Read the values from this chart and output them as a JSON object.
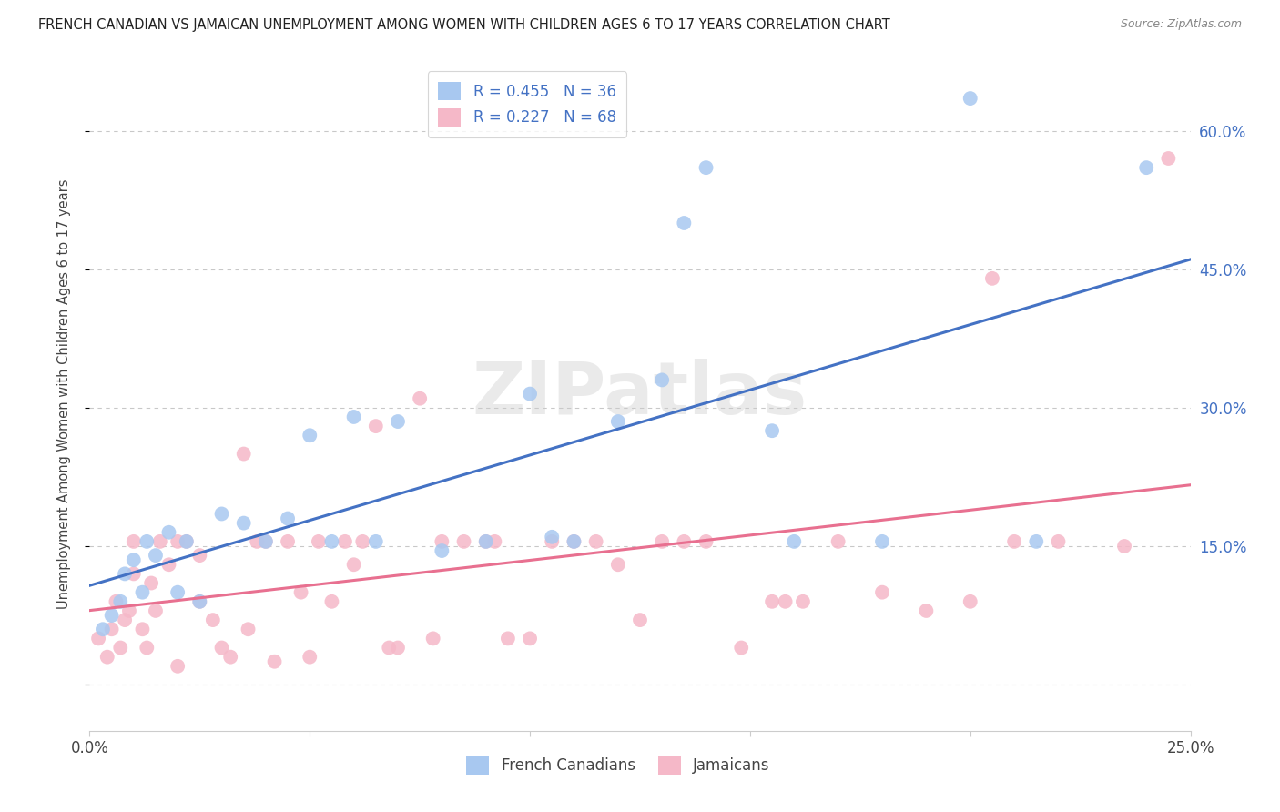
{
  "title": "FRENCH CANADIAN VS JAMAICAN UNEMPLOYMENT AMONG WOMEN WITH CHILDREN AGES 6 TO 17 YEARS CORRELATION CHART",
  "source": "Source: ZipAtlas.com",
  "ylabel": "Unemployment Among Women with Children Ages 6 to 17 years",
  "xlim": [
    0.0,
    0.25
  ],
  "ylim": [
    -0.05,
    0.68
  ],
  "xtick_positions": [
    0.0,
    0.05,
    0.1,
    0.15,
    0.2,
    0.25
  ],
  "xticklabels": [
    "0.0%",
    "",
    "",
    "",
    "",
    "25.0%"
  ],
  "ytick_positions": [
    0.0,
    0.15,
    0.3,
    0.45,
    0.6
  ],
  "yticklabels_right": [
    "",
    "15.0%",
    "30.0%",
    "45.0%",
    "60.0%"
  ],
  "blue_scatter_color": "#A8C8F0",
  "pink_scatter_color": "#F5B8C8",
  "blue_line_color": "#4472C4",
  "pink_line_color": "#E87090",
  "tick_label_color": "#4472C4",
  "watermark": "ZIPatlas",
  "R_blue": 0.455,
  "N_blue": 36,
  "R_pink": 0.227,
  "N_pink": 68,
  "blue_scatter_x": [
    0.003,
    0.005,
    0.007,
    0.008,
    0.01,
    0.012,
    0.013,
    0.015,
    0.018,
    0.02,
    0.022,
    0.025,
    0.03,
    0.035,
    0.04,
    0.045,
    0.05,
    0.055,
    0.06,
    0.065,
    0.07,
    0.08,
    0.09,
    0.1,
    0.105,
    0.11,
    0.12,
    0.13,
    0.135,
    0.14,
    0.155,
    0.16,
    0.18,
    0.2,
    0.215,
    0.24
  ],
  "blue_scatter_y": [
    0.06,
    0.075,
    0.09,
    0.12,
    0.135,
    0.1,
    0.155,
    0.14,
    0.165,
    0.1,
    0.155,
    0.09,
    0.185,
    0.175,
    0.155,
    0.18,
    0.27,
    0.155,
    0.29,
    0.155,
    0.285,
    0.145,
    0.155,
    0.315,
    0.16,
    0.155,
    0.285,
    0.33,
    0.5,
    0.56,
    0.275,
    0.155,
    0.155,
    0.635,
    0.155,
    0.56
  ],
  "pink_scatter_x": [
    0.002,
    0.004,
    0.005,
    0.006,
    0.007,
    0.008,
    0.009,
    0.01,
    0.01,
    0.012,
    0.013,
    0.014,
    0.015,
    0.016,
    0.018,
    0.02,
    0.02,
    0.022,
    0.025,
    0.025,
    0.028,
    0.03,
    0.032,
    0.035,
    0.036,
    0.038,
    0.04,
    0.042,
    0.045,
    0.048,
    0.05,
    0.052,
    0.055,
    0.058,
    0.06,
    0.062,
    0.065,
    0.068,
    0.07,
    0.075,
    0.078,
    0.08,
    0.085,
    0.09,
    0.092,
    0.095,
    0.1,
    0.105,
    0.11,
    0.115,
    0.12,
    0.125,
    0.13,
    0.135,
    0.14,
    0.148,
    0.155,
    0.158,
    0.162,
    0.17,
    0.18,
    0.19,
    0.2,
    0.205,
    0.21,
    0.22,
    0.235,
    0.245
  ],
  "pink_scatter_y": [
    0.05,
    0.03,
    0.06,
    0.09,
    0.04,
    0.07,
    0.08,
    0.12,
    0.155,
    0.06,
    0.04,
    0.11,
    0.08,
    0.155,
    0.13,
    0.02,
    0.155,
    0.155,
    0.09,
    0.14,
    0.07,
    0.04,
    0.03,
    0.25,
    0.06,
    0.155,
    0.155,
    0.025,
    0.155,
    0.1,
    0.03,
    0.155,
    0.09,
    0.155,
    0.13,
    0.155,
    0.28,
    0.04,
    0.04,
    0.31,
    0.05,
    0.155,
    0.155,
    0.155,
    0.155,
    0.05,
    0.05,
    0.155,
    0.155,
    0.155,
    0.13,
    0.07,
    0.155,
    0.155,
    0.155,
    0.04,
    0.09,
    0.09,
    0.09,
    0.155,
    0.1,
    0.08,
    0.09,
    0.44,
    0.155,
    0.155,
    0.15,
    0.57
  ],
  "background_color": "#FFFFFF",
  "grid_color": "#BBBBBB",
  "marker_size": 130
}
